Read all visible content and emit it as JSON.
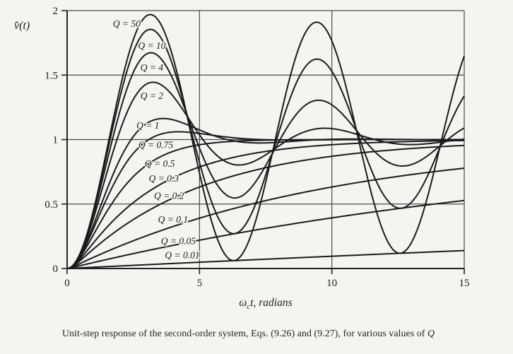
{
  "figure": {
    "caption_text": "Unit-step response of the second-order system, Eqs. (9.26) and (9.27), for various values of ",
    "caption_emphasis": "Q"
  },
  "chart_data": {
    "type": "line",
    "title": "",
    "ylabel": "v̂(t)",
    "xlabel": {
      "symbol": "ω",
      "subscript": "c",
      "rest": "t, radians"
    },
    "xlim": [
      0,
      15
    ],
    "ylim": [
      0,
      2
    ],
    "xticks": {
      "values": [
        0,
        5,
        10,
        15
      ],
      "labels": [
        "0",
        "5",
        "10",
        "15"
      ]
    },
    "yticks": {
      "values": [
        0,
        0.5,
        1,
        1.5,
        2
      ],
      "labels": [
        "0",
        "0.5",
        "1",
        "1.5",
        "2"
      ]
    },
    "grid": true,
    "legend_position": "inline-labels",
    "model": "unit-step response of a second-order system; damping ratio zeta = 1/(2Q); y(t)=1-e^(-zeta*t)/sqrt(1-zeta^2)*sin(sqrt(1-zeta^2)*t+acos(zeta)) for zeta<1; y(t)=1-(1+t)e^(-t) for zeta=1; overdamped two-exponential form for zeta>1",
    "series": [
      {
        "label": "Q = 50",
        "q": 50,
        "label_x": 2.25,
        "label_y": 1.9,
        "first_peak": 1.97,
        "peak_t": 3.14
      },
      {
        "label": "Q = 10",
        "q": 10,
        "label_x": 3.2,
        "label_y": 1.73,
        "first_peak": 1.85,
        "peak_t": 3.15
      },
      {
        "label": "Q = 4",
        "q": 4,
        "label_x": 3.2,
        "label_y": 1.56,
        "first_peak": 1.67,
        "peak_t": 3.17
      },
      {
        "label": "Q = 2",
        "q": 2,
        "label_x": 3.2,
        "label_y": 1.34,
        "first_peak": 1.44,
        "peak_t": 3.24
      },
      {
        "label": "Q = 1",
        "q": 1,
        "label_x": 3.05,
        "label_y": 1.11,
        "first_peak": 1.16,
        "peak_t": 3.63
      },
      {
        "label": "Q = 0.75",
        "q": 0.75,
        "label_x": 3.35,
        "label_y": 0.96,
        "first_peak": 1.06,
        "peak_t": 4.22
      },
      {
        "label": "Q = 0.5",
        "q": 0.5,
        "label_x": 3.5,
        "label_y": 0.815,
        "monotonic": true,
        "y_at_t15": 1.0
      },
      {
        "label": "Q = 0.3",
        "q": 0.3,
        "label_x": 3.65,
        "label_y": 0.7,
        "monotonic": true,
        "y_at_t15": 0.99
      },
      {
        "label": "Q = 0.2",
        "q": 0.2,
        "label_x": 3.85,
        "label_y": 0.565,
        "monotonic": true,
        "y_at_t15": 0.95
      },
      {
        "label": "Q = 0.1",
        "q": 0.1,
        "label_x": 4.0,
        "label_y": 0.38,
        "monotonic": true,
        "y_at_t15": 0.78
      },
      {
        "label": "Q = 0.05",
        "q": 0.05,
        "label_x": 4.2,
        "label_y": 0.215,
        "monotonic": true,
        "y_at_t15": 0.53
      },
      {
        "label": "Q = 0.01",
        "q": 0.01,
        "label_x": 4.35,
        "label_y": 0.105,
        "monotonic": true,
        "y_at_t15": 0.14
      }
    ],
    "colors": {
      "curve": "#1b1b1b",
      "grid": "#4a4a4a",
      "axis": "#222222",
      "text": "#1b1b1b",
      "background": "#f5f4f1"
    }
  }
}
